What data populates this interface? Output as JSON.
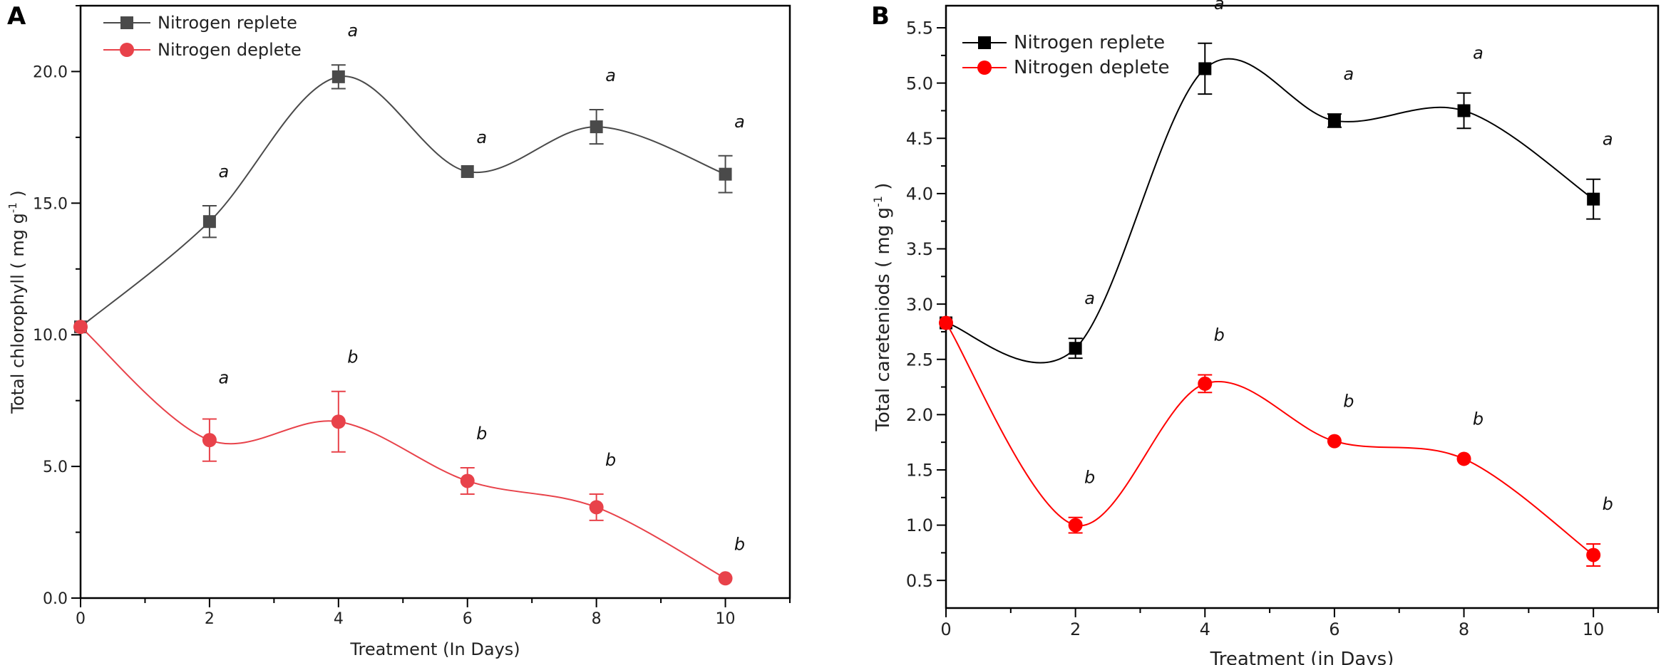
{
  "chart_data": [
    {
      "panel_label": "A",
      "type": "line",
      "xlabel": "Treatment (In Days)",
      "ylabel_main": "Total chlorophyll ( mg g",
      "ylabel_sup": "-1",
      "ylabel_end": ")",
      "xlim": [
        0,
        11
      ],
      "ylim": [
        0,
        22.5
      ],
      "xticks": [
        0,
        2,
        4,
        6,
        8,
        10
      ],
      "xtick_labels": [
        "0",
        "2",
        "4",
        "6",
        "8",
        "10"
      ],
      "yticks": [
        0,
        5,
        10,
        15,
        20
      ],
      "ytick_labels": [
        "0.0",
        "5.0",
        "10.0",
        "15.0",
        "20.0"
      ],
      "legend_position": "top-left",
      "series": [
        {
          "name": "Nitrogen replete",
          "color": "#4a4a4a",
          "marker": "square",
          "x": [
            0,
            2,
            4,
            6,
            8,
            10
          ],
          "values": [
            10.3,
            14.3,
            19.8,
            16.2,
            17.9,
            16.1
          ],
          "errors": [
            0,
            0.6,
            0.45,
            0,
            0.65,
            0.7
          ],
          "significance": [
            "",
            "a",
            "a",
            "a",
            "a",
            "a"
          ]
        },
        {
          "name": "Nitrogen deplete",
          "color": "#e8424a",
          "marker": "circle",
          "x": [
            0,
            2,
            4,
            6,
            8,
            10
          ],
          "values": [
            10.3,
            6.0,
            6.7,
            4.45,
            3.45,
            0.75
          ],
          "errors": [
            0,
            0.8,
            1.15,
            0.5,
            0.5,
            0
          ],
          "significance": [
            "",
            "a",
            "b",
            "b",
            "b",
            "b"
          ]
        }
      ]
    },
    {
      "panel_label": "B",
      "type": "line",
      "xlabel": "Treatment (in Days)",
      "ylabel_main": "Total careteniods ( mg g",
      "ylabel_sup": "-1",
      "ylabel_end": ")",
      "xlim": [
        0,
        11
      ],
      "ylim": [
        0.25,
        5.7
      ],
      "xticks": [
        0,
        2,
        4,
        6,
        8,
        10
      ],
      "xtick_labels": [
        "0",
        "2",
        "4",
        "6",
        "8",
        "10"
      ],
      "yticks": [
        0.5,
        1.0,
        1.5,
        2.0,
        2.5,
        3.0,
        3.5,
        4.0,
        4.5,
        5.0,
        5.5
      ],
      "ytick_labels": [
        "0.5",
        "1.0",
        "1.5",
        "2.0",
        "2.5",
        "3.0",
        "3.5",
        "4.0",
        "4.5",
        "5.0",
        "5.5"
      ],
      "legend_position": "top-left",
      "series": [
        {
          "name": "Nitrogen replete",
          "color": "#000000",
          "marker": "square",
          "x": [
            0,
            2,
            4,
            6,
            8,
            10
          ],
          "values": [
            2.83,
            2.6,
            5.13,
            4.66,
            4.75,
            3.95
          ],
          "errors": [
            0,
            0.09,
            0.23,
            0.06,
            0.16,
            0.18
          ],
          "significance": [
            "",
            "a",
            "a",
            "a",
            "a",
            "a"
          ]
        },
        {
          "name": "Nitrogen deplete",
          "color": "#ff0000",
          "marker": "circle",
          "x": [
            0,
            2,
            4,
            6,
            8,
            10
          ],
          "values": [
            2.83,
            1.0,
            2.28,
            1.76,
            1.6,
            0.73
          ],
          "errors": [
            0,
            0.07,
            0.08,
            0,
            0,
            0.1
          ],
          "significance": [
            "",
            "b",
            "b",
            "b",
            "b",
            "b"
          ]
        }
      ]
    }
  ]
}
